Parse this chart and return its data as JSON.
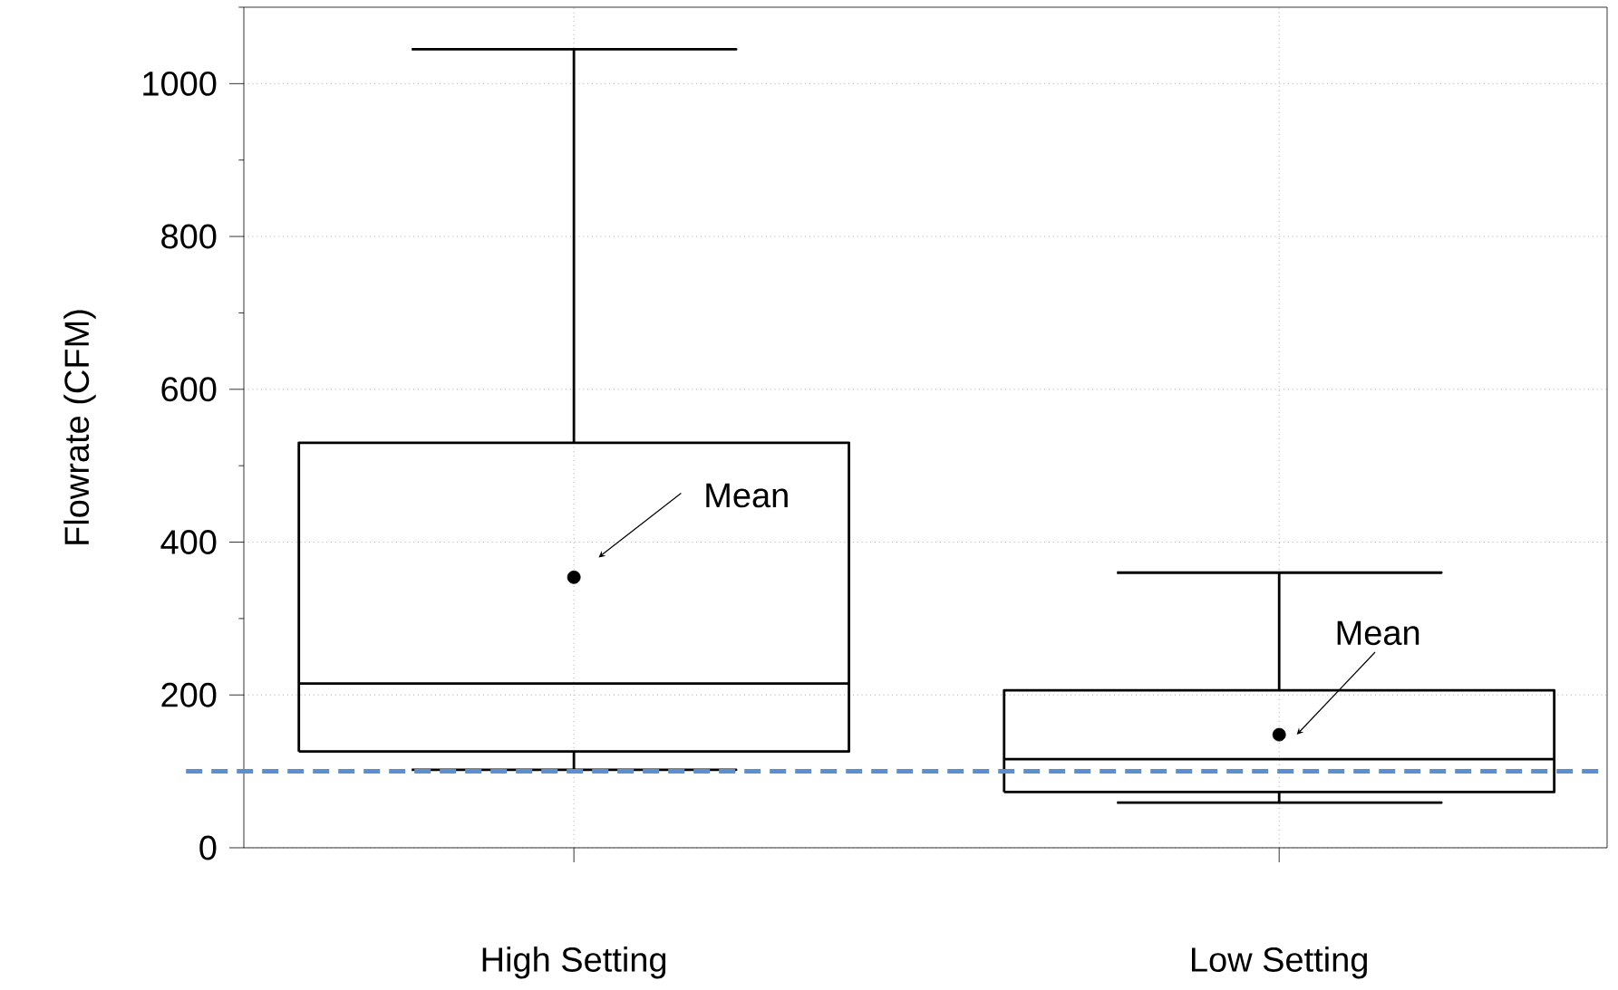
{
  "chart_data": {
    "type": "box",
    "categories": [
      "High Setting",
      "Low Setting"
    ],
    "boxes": [
      {
        "low": 102,
        "q1": 126,
        "median": 215,
        "q3": 530,
        "high": 1045,
        "mean": 354
      },
      {
        "low": 59,
        "q1": 73,
        "median": 116,
        "q3": 206,
        "high": 360,
        "mean": 148
      }
    ],
    "ylabel": "Flowrate (CFM)",
    "ylim": [
      0,
      1100
    ],
    "yticks": [
      0,
      200,
      400,
      600,
      800,
      1000
    ],
    "grid": true,
    "ref_lines": [
      {
        "axis": "y",
        "value": 100,
        "color": "#5b8fd0",
        "line_style": "dashed"
      }
    ],
    "annotations": [
      "Mean",
      "Mean"
    ]
  }
}
